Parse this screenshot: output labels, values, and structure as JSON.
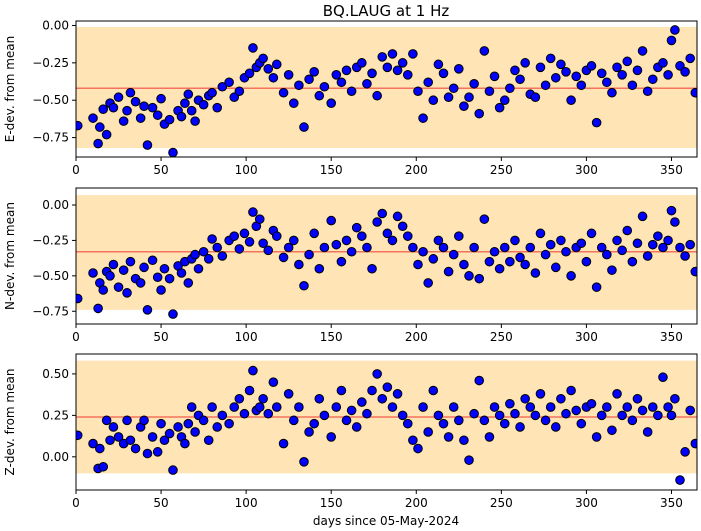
{
  "figure": {
    "title": "BQ.LAUG at 1 Hz",
    "xlabel": "days since 05-May-2024",
    "band_color": "#ffe4b5",
    "mean_line_color": "#f4735e",
    "point_fill": "#0000ff",
    "point_edge": "#000000"
  },
  "chart_data": [
    {
      "type": "scatter",
      "id": "east",
      "ylabel": "E-dev. from mean",
      "xlim": [
        0,
        365
      ],
      "ylim": [
        -0.88,
        0.03
      ],
      "xticks": [
        0,
        50,
        100,
        150,
        200,
        250,
        300,
        350
      ],
      "yticks": [
        -0.75,
        -0.5,
        -0.25,
        0.0
      ],
      "ytick_labels": [
        "−0.75",
        "−0.50",
        "−0.25",
        "0.00"
      ],
      "mean": -0.42,
      "band": [
        -0.82,
        -0.01
      ],
      "x": [
        1,
        10,
        13,
        14,
        16,
        18,
        20,
        22,
        25,
        28,
        30,
        32,
        35,
        38,
        40,
        42,
        45,
        48,
        50,
        52,
        55,
        57,
        60,
        62,
        64,
        66,
        68,
        70,
        72,
        75,
        78,
        80,
        83,
        86,
        90,
        93,
        96,
        99,
        102,
        104,
        106,
        108,
        110,
        113,
        116,
        118,
        122,
        125,
        128,
        131,
        134,
        137,
        140,
        143,
        146,
        150,
        153,
        156,
        159,
        162,
        165,
        168,
        171,
        174,
        177,
        180,
        183,
        186,
        189,
        192,
        195,
        198,
        201,
        204,
        207,
        210,
        213,
        216,
        219,
        222,
        225,
        228,
        231,
        234,
        237,
        240,
        243,
        246,
        249,
        252,
        255,
        258,
        261,
        264,
        267,
        270,
        273,
        276,
        279,
        282,
        285,
        288,
        291,
        294,
        297,
        300,
        303,
        306,
        309,
        312,
        315,
        318,
        321,
        324,
        327,
        330,
        333,
        336,
        339,
        342,
        345,
        348,
        350,
        352,
        355,
        358,
        361,
        364
      ],
      "y": [
        -0.67,
        -0.62,
        -0.79,
        -0.68,
        -0.56,
        -0.73,
        -0.52,
        -0.55,
        -0.48,
        -0.64,
        -0.57,
        -0.45,
        -0.51,
        -0.62,
        -0.54,
        -0.8,
        -0.55,
        -0.6,
        -0.49,
        -0.66,
        -0.63,
        -0.85,
        -0.57,
        -0.61,
        -0.52,
        -0.46,
        -0.57,
        -0.64,
        -0.5,
        -0.53,
        -0.47,
        -0.45,
        -0.55,
        -0.41,
        -0.38,
        -0.48,
        -0.44,
        -0.35,
        -0.32,
        -0.15,
        -0.28,
        -0.25,
        -0.22,
        -0.29,
        -0.35,
        -0.26,
        -0.45,
        -0.33,
        -0.52,
        -0.4,
        -0.68,
        -0.36,
        -0.31,
        -0.47,
        -0.41,
        -0.52,
        -0.33,
        -0.38,
        -0.3,
        -0.44,
        -0.28,
        -0.25,
        -0.39,
        -0.32,
        -0.47,
        -0.21,
        -0.28,
        -0.19,
        -0.3,
        -0.25,
        -0.33,
        -0.19,
        -0.44,
        -0.62,
        -0.38,
        -0.5,
        -0.26,
        -0.32,
        -0.48,
        -0.42,
        -0.29,
        -0.54,
        -0.48,
        -0.39,
        -0.59,
        -0.17,
        -0.44,
        -0.34,
        -0.55,
        -0.5,
        -0.42,
        -0.3,
        -0.36,
        -0.25,
        -0.46,
        -0.48,
        -0.28,
        -0.4,
        -0.22,
        -0.35,
        -0.26,
        -0.31,
        -0.5,
        -0.34,
        -0.4,
        -0.3,
        -0.27,
        -0.65,
        -0.32,
        -0.38,
        -0.45,
        -0.28,
        -0.33,
        -0.24,
        -0.4,
        -0.3,
        -0.17,
        -0.44,
        -0.36,
        -0.28,
        -0.25,
        -0.33,
        -0.1,
        -0.03,
        -0.27,
        -0.31,
        -0.22,
        -0.45
      ]
    },
    {
      "type": "scatter",
      "id": "north",
      "ylabel": "N-dev. from mean",
      "xlim": [
        0,
        365
      ],
      "ylim": [
        -0.84,
        0.12
      ],
      "xticks": [
        0,
        50,
        100,
        150,
        200,
        250,
        300,
        350
      ],
      "yticks": [
        -0.75,
        -0.5,
        -0.25,
        0.0
      ],
      "ytick_labels": [
        "−0.75",
        "−0.50",
        "−0.25",
        "0.00"
      ],
      "mean": -0.33,
      "band": [
        -0.74,
        0.07
      ],
      "x": [
        1,
        10,
        13,
        14,
        16,
        18,
        20,
        22,
        25,
        28,
        30,
        32,
        35,
        38,
        40,
        42,
        45,
        48,
        50,
        52,
        55,
        57,
        60,
        62,
        64,
        66,
        68,
        70,
        72,
        75,
        78,
        80,
        83,
        86,
        90,
        93,
        96,
        99,
        102,
        104,
        106,
        108,
        110,
        113,
        116,
        118,
        122,
        125,
        128,
        131,
        134,
        137,
        140,
        143,
        146,
        150,
        153,
        156,
        159,
        162,
        165,
        168,
        171,
        174,
        177,
        180,
        183,
        186,
        189,
        192,
        195,
        198,
        201,
        204,
        207,
        210,
        213,
        216,
        219,
        222,
        225,
        228,
        231,
        234,
        237,
        240,
        243,
        246,
        249,
        252,
        255,
        258,
        261,
        264,
        267,
        270,
        273,
        276,
        279,
        282,
        285,
        288,
        291,
        294,
        297,
        300,
        303,
        306,
        309,
        312,
        315,
        318,
        321,
        324,
        327,
        330,
        333,
        336,
        339,
        342,
        345,
        348,
        350,
        352,
        355,
        358,
        361,
        364
      ],
      "y": [
        -0.66,
        -0.48,
        -0.73,
        -0.55,
        -0.6,
        -0.47,
        -0.5,
        -0.42,
        -0.58,
        -0.46,
        -0.62,
        -0.4,
        -0.52,
        -0.55,
        -0.44,
        -0.74,
        -0.39,
        -0.51,
        -0.6,
        -0.45,
        -0.52,
        -0.77,
        -0.43,
        -0.48,
        -0.4,
        -0.55,
        -0.38,
        -0.35,
        -0.45,
        -0.33,
        -0.38,
        -0.24,
        -0.3,
        -0.36,
        -0.25,
        -0.22,
        -0.31,
        -0.2,
        -0.26,
        -0.05,
        -0.15,
        -0.1,
        -0.27,
        -0.32,
        -0.18,
        -0.22,
        -0.37,
        -0.3,
        -0.25,
        -0.42,
        -0.57,
        -0.35,
        -0.2,
        -0.45,
        -0.3,
        -0.11,
        -0.28,
        -0.4,
        -0.25,
        -0.33,
        -0.16,
        -0.22,
        -0.3,
        -0.45,
        -0.12,
        -0.06,
        -0.2,
        -0.25,
        -0.08,
        -0.15,
        -0.22,
        -0.3,
        -0.42,
        -0.33,
        -0.55,
        -0.38,
        -0.25,
        -0.3,
        -0.47,
        -0.35,
        -0.22,
        -0.42,
        -0.5,
        -0.3,
        -0.52,
        -0.1,
        -0.4,
        -0.33,
        -0.45,
        -0.3,
        -0.4,
        -0.25,
        -0.37,
        -0.42,
        -0.3,
        -0.48,
        -0.2,
        -0.35,
        -0.28,
        -0.44,
        -0.25,
        -0.33,
        -0.5,
        -0.3,
        -0.27,
        -0.4,
        -0.2,
        -0.58,
        -0.3,
        -0.35,
        -0.46,
        -0.25,
        -0.32,
        -0.18,
        -0.4,
        -0.27,
        -0.08,
        -0.36,
        -0.28,
        -0.22,
        -0.3,
        -0.25,
        -0.04,
        -0.12,
        -0.3,
        -0.36,
        -0.28,
        -0.47
      ]
    },
    {
      "type": "scatter",
      "id": "vertical",
      "ylabel": "Z-dev. from mean",
      "xlim": [
        0,
        365
      ],
      "ylim": [
        -0.2,
        0.62
      ],
      "xticks": [
        0,
        50,
        100,
        150,
        200,
        250,
        300,
        350
      ],
      "yticks": [
        0.0,
        0.25,
        0.5
      ],
      "ytick_labels": [
        "0.00",
        "0.25",
        "0.50"
      ],
      "mean": 0.24,
      "band": [
        -0.1,
        0.58
      ],
      "x": [
        1,
        10,
        13,
        14,
        16,
        18,
        20,
        22,
        25,
        28,
        30,
        32,
        35,
        38,
        40,
        42,
        45,
        48,
        50,
        52,
        55,
        57,
        60,
        62,
        64,
        66,
        68,
        70,
        72,
        75,
        78,
        80,
        83,
        86,
        90,
        93,
        96,
        99,
        102,
        104,
        106,
        108,
        110,
        113,
        116,
        118,
        122,
        125,
        128,
        131,
        134,
        137,
        140,
        143,
        146,
        150,
        153,
        156,
        159,
        162,
        165,
        168,
        171,
        174,
        177,
        180,
        183,
        186,
        189,
        192,
        195,
        198,
        201,
        204,
        207,
        210,
        213,
        216,
        219,
        222,
        225,
        228,
        231,
        234,
        237,
        240,
        243,
        246,
        249,
        252,
        255,
        258,
        261,
        264,
        267,
        270,
        273,
        276,
        279,
        282,
        285,
        288,
        291,
        294,
        297,
        300,
        303,
        306,
        309,
        312,
        315,
        318,
        321,
        324,
        327,
        330,
        333,
        336,
        339,
        342,
        345,
        348,
        350,
        352,
        355,
        358,
        361,
        364
      ],
      "y": [
        0.13,
        0.08,
        -0.07,
        0.05,
        -0.06,
        0.22,
        0.1,
        0.18,
        0.12,
        0.08,
        0.22,
        0.1,
        0.05,
        0.18,
        0.22,
        0.02,
        0.12,
        0.03,
        0.2,
        0.1,
        0.14,
        -0.08,
        0.18,
        0.12,
        0.08,
        0.2,
        0.3,
        0.15,
        0.25,
        0.22,
        0.1,
        0.3,
        0.18,
        0.25,
        0.2,
        0.3,
        0.35,
        0.26,
        0.4,
        0.52,
        0.28,
        0.3,
        0.35,
        0.26,
        0.45,
        0.3,
        0.08,
        0.38,
        0.22,
        0.3,
        -0.03,
        0.15,
        0.2,
        0.35,
        0.25,
        0.12,
        0.3,
        0.4,
        0.22,
        0.28,
        0.18,
        0.33,
        0.26,
        0.4,
        0.5,
        0.35,
        0.42,
        0.3,
        0.38,
        0.25,
        0.2,
        0.1,
        0.05,
        0.3,
        0.15,
        0.4,
        0.25,
        0.2,
        0.12,
        0.3,
        0.22,
        0.1,
        -0.02,
        0.26,
        0.46,
        0.22,
        0.12,
        0.3,
        0.25,
        0.2,
        0.32,
        0.26,
        0.18,
        0.35,
        0.3,
        0.25,
        0.38,
        0.22,
        0.3,
        0.18,
        0.35,
        0.26,
        0.4,
        0.28,
        0.2,
        0.3,
        0.32,
        0.12,
        0.25,
        0.3,
        0.16,
        0.38,
        0.25,
        0.3,
        0.22,
        0.35,
        0.28,
        0.15,
        0.3,
        0.25,
        0.48,
        0.3,
        0.25,
        0.35,
        -0.14,
        0.03,
        0.28,
        0.08
      ]
    }
  ]
}
